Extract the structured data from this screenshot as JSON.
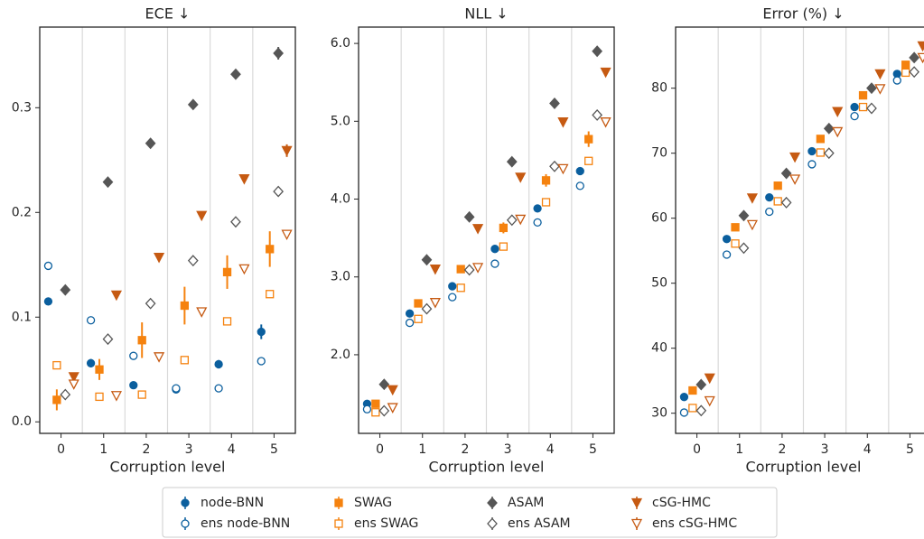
{
  "chart_data": [
    {
      "type": "scatter",
      "title": "ECE  ↓",
      "xlabel": "Corruption level",
      "categories": [
        "0",
        "1",
        "2",
        "3",
        "4",
        "5"
      ],
      "ylim": [
        -0.011,
        0.377
      ],
      "yticks": [
        {
          "value": 0,
          "label": "0.0"
        },
        0.1,
        0.2,
        0.3
      ],
      "series": [
        {
          "name": "node-BNN",
          "color": "#0b5f9e",
          "marker": "circle",
          "filled": true,
          "values": [
            0.115,
            0.056,
            0.035,
            0.031,
            0.055,
            0.086
          ],
          "errors": [
            0.003,
            0.004,
            0.002,
            0.002,
            0.004,
            0.007
          ]
        },
        {
          "name": "ens node-BNN",
          "color": "#0b5f9e",
          "marker": "circle",
          "filled": false,
          "values": [
            0.149,
            0.097,
            0.063,
            0.032,
            0.032,
            0.058
          ]
        },
        {
          "name": "SWAG",
          "color": "#f5820f",
          "marker": "square",
          "filled": true,
          "values": [
            0.021,
            0.05,
            0.078,
            0.111,
            0.143,
            0.165
          ],
          "errors": [
            0.01,
            0.01,
            0.017,
            0.018,
            0.016,
            0.017
          ]
        },
        {
          "name": "ens SWAG",
          "color": "#f5820f",
          "marker": "square",
          "filled": false,
          "values": [
            0.054,
            0.024,
            0.026,
            0.059,
            0.096,
            0.122
          ]
        },
        {
          "name": "ASAM",
          "color": "#565656",
          "marker": "diamond",
          "filled": true,
          "values": [
            0.126,
            0.229,
            0.266,
            0.303,
            0.332,
            0.352
          ],
          "errors": [
            0.002,
            0.003,
            0.003,
            0.003,
            0.004,
            0.006
          ]
        },
        {
          "name": "ens ASAM",
          "color": "#565656",
          "marker": "diamond",
          "filled": false,
          "values": [
            0.026,
            0.079,
            0.113,
            0.154,
            0.191,
            0.22
          ]
        },
        {
          "name": "cSG-HMC",
          "color": "#c65a12",
          "marker": "triangle",
          "filled": true,
          "values": [
            0.043,
            0.121,
            0.157,
            0.197,
            0.232,
            0.259
          ],
          "errors": [
            0.002,
            0.002,
            0.003,
            0.003,
            0.003,
            0.006
          ]
        },
        {
          "name": "ens cSG-HMC",
          "color": "#c65a12",
          "marker": "triangle",
          "filled": false,
          "values": [
            0.036,
            0.025,
            0.062,
            0.105,
            0.146,
            0.179
          ]
        }
      ]
    },
    {
      "type": "scatter",
      "title": "NLL  ↓",
      "xlabel": "Corruption level",
      "categories": [
        "0",
        "1",
        "2",
        "3",
        "4",
        "5"
      ],
      "ylim": [
        0.99,
        6.21
      ],
      "yticks": [
        {
          "value": 2,
          "label": "2.0"
        },
        {
          "value": 3,
          "label": "3.0"
        },
        {
          "value": 4,
          "label": "4.0"
        },
        {
          "value": 5,
          "label": "5.0"
        },
        {
          "value": 6,
          "label": "6.0"
        }
      ],
      "series": [
        {
          "name": "node-BNN",
          "color": "#0b5f9e",
          "marker": "circle",
          "filled": true,
          "values": [
            1.37,
            2.53,
            2.88,
            3.36,
            3.88,
            4.36
          ]
        },
        {
          "name": "ens node-BNN",
          "color": "#0b5f9e",
          "marker": "circle",
          "filled": false,
          "values": [
            1.3,
            2.41,
            2.74,
            3.17,
            3.7,
            4.17
          ]
        },
        {
          "name": "SWAG",
          "color": "#f5820f",
          "marker": "square",
          "filled": true,
          "values": [
            1.37,
            2.66,
            3.1,
            3.63,
            4.24,
            4.77
          ],
          "errors": [
            0.04,
            0.04,
            0.05,
            0.07,
            0.08,
            0.1
          ]
        },
        {
          "name": "ens SWAG",
          "color": "#f5820f",
          "marker": "square",
          "filled": false,
          "values": [
            1.26,
            2.46,
            2.86,
            3.39,
            3.96,
            4.49
          ]
        },
        {
          "name": "ASAM",
          "color": "#565656",
          "marker": "diamond",
          "filled": true,
          "values": [
            1.62,
            3.22,
            3.77,
            4.48,
            5.23,
            5.9
          ]
        },
        {
          "name": "ens ASAM",
          "color": "#565656",
          "marker": "diamond",
          "filled": false,
          "values": [
            1.28,
            2.59,
            3.09,
            3.73,
            4.42,
            5.08
          ]
        },
        {
          "name": "cSG-HMC",
          "color": "#c65a12",
          "marker": "triangle",
          "filled": true,
          "values": [
            1.55,
            3.1,
            3.62,
            4.28,
            4.99,
            5.63
          ]
        },
        {
          "name": "ens cSG-HMC",
          "color": "#c65a12",
          "marker": "triangle",
          "filled": false,
          "values": [
            1.32,
            2.67,
            3.12,
            3.74,
            4.39,
            4.99
          ]
        }
      ]
    },
    {
      "type": "scatter",
      "title": "Error (%)  ↓",
      "xlabel": "Corruption level",
      "categories": [
        "0",
        "1",
        "2",
        "3",
        "4",
        "5"
      ],
      "ylim": [
        26.9,
        89.4
      ],
      "yticks": [
        30,
        40,
        50,
        60,
        70,
        80
      ],
      "series": [
        {
          "name": "node-BNN",
          "color": "#0b5f9e",
          "marker": "circle",
          "filled": true,
          "values": [
            32.5,
            56.8,
            63.2,
            70.3,
            77.1,
            82.2
          ]
        },
        {
          "name": "ens node-BNN",
          "color": "#0b5f9e",
          "marker": "circle",
          "filled": false,
          "values": [
            30.1,
            54.4,
            61.0,
            68.3,
            75.7,
            81.2
          ]
        },
        {
          "name": "SWAG",
          "color": "#f5820f",
          "marker": "square",
          "filled": true,
          "values": [
            33.5,
            58.6,
            65.0,
            72.2,
            78.9,
            83.6
          ]
        },
        {
          "name": "ens SWAG",
          "color": "#f5820f",
          "marker": "square",
          "filled": false,
          "values": [
            30.8,
            56.1,
            62.6,
            70.1,
            77.1,
            82.4
          ]
        },
        {
          "name": "ASAM",
          "color": "#565656",
          "marker": "diamond",
          "filled": true,
          "values": [
            34.4,
            60.4,
            66.9,
            73.8,
            80.0,
            84.7
          ]
        },
        {
          "name": "ens ASAM",
          "color": "#565656",
          "marker": "diamond",
          "filled": false,
          "values": [
            30.4,
            55.4,
            62.4,
            70.0,
            76.9,
            82.5
          ]
        },
        {
          "name": "cSG-HMC",
          "color": "#c65a12",
          "marker": "triangle",
          "filled": true,
          "values": [
            35.4,
            63.1,
            69.4,
            76.4,
            82.2,
            86.5
          ]
        },
        {
          "name": "ens cSG-HMC",
          "color": "#c65a12",
          "marker": "triangle",
          "filled": false,
          "values": [
            31.9,
            59.0,
            66.0,
            73.3,
            79.9,
            84.7
          ]
        }
      ]
    }
  ]
}
